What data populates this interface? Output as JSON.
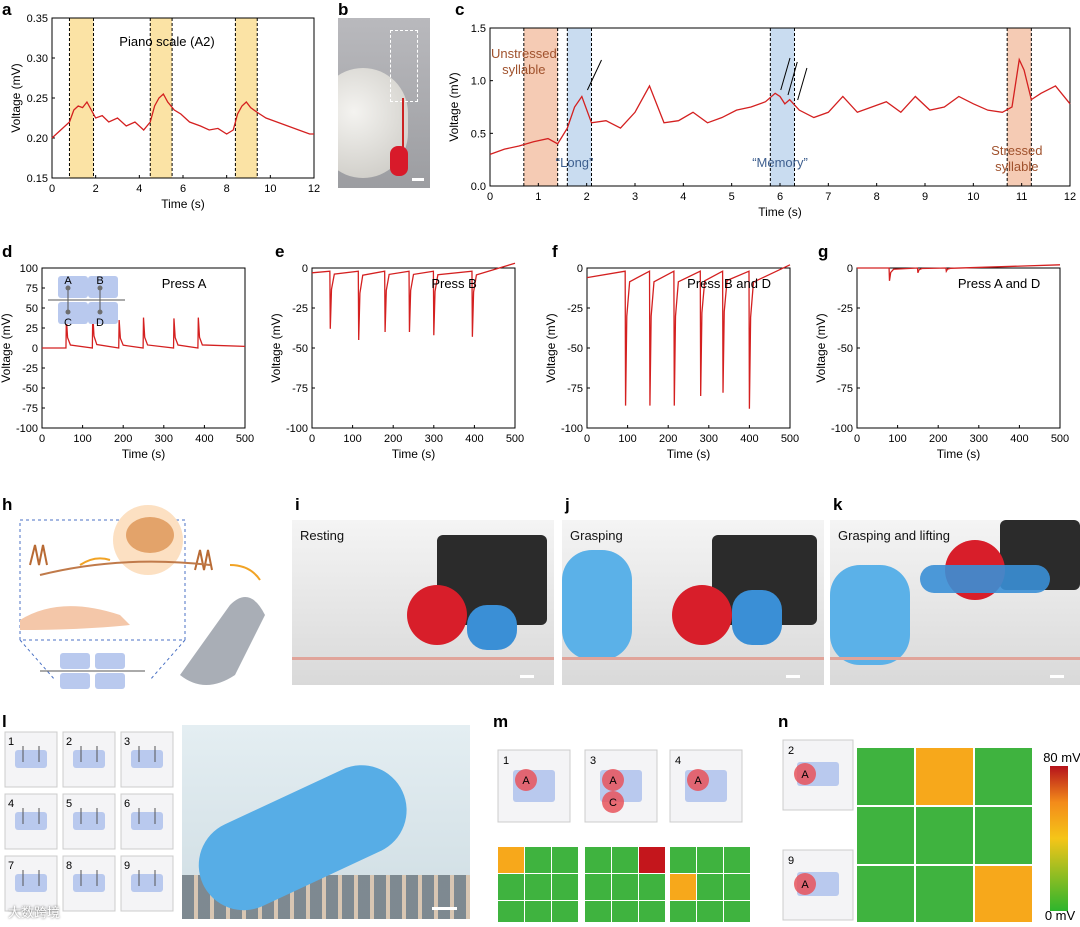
{
  "labels": {
    "a": "a",
    "b": "b",
    "c": "c",
    "d": "d",
    "e": "e",
    "f": "f",
    "g": "g",
    "h": "h",
    "i": "i",
    "j": "j",
    "k": "k",
    "l": "l",
    "m": "m",
    "n": "n"
  },
  "colors": {
    "trace": "#d42020",
    "yellow": "#fbe3a5",
    "orange": "#f5cbb4",
    "blue": "#c9dcf0",
    "cellGreen": "#3fb33f",
    "cellOrange": "#f7a81b",
    "cellRed": "#c4161c",
    "pad": "#b9c9ee",
    "node": "#6e6e6e"
  },
  "photos": {
    "i": {
      "caption": "Resting"
    },
    "j": {
      "caption": "Grasping"
    },
    "k": {
      "caption": "Grasping and lifting"
    }
  },
  "chart_data": [
    {
      "id": "a",
      "type": "line",
      "title": "Piano scale (A2)",
      "xlabel": "Time (s)",
      "ylabel": "Voltage (mV)",
      "xlim": [
        0,
        12
      ],
      "ylim": [
        0.15,
        0.35
      ],
      "xticks": [
        "0",
        "2",
        "4",
        "6",
        "8",
        "10",
        "12"
      ],
      "yticks": [
        "0.15",
        "0.20",
        "0.25",
        "0.30",
        "0.35"
      ],
      "highlights": [
        [
          0.8,
          1.9
        ],
        [
          4.5,
          5.5
        ],
        [
          8.4,
          9.4
        ]
      ],
      "x": [
        0,
        0.4,
        0.8,
        1.0,
        1.2,
        1.4,
        1.6,
        1.8,
        2.0,
        2.3,
        2.6,
        3.0,
        3.4,
        3.8,
        4.2,
        4.5,
        4.7,
        4.9,
        5.1,
        5.3,
        5.6,
        5.9,
        6.3,
        6.8,
        7.2,
        7.6,
        8.0,
        8.3,
        8.5,
        8.7,
        8.9,
        9.1,
        9.4,
        9.8,
        10.3,
        10.8,
        11.3,
        11.8,
        12
      ],
      "y": [
        0.2,
        0.21,
        0.22,
        0.235,
        0.24,
        0.238,
        0.245,
        0.235,
        0.225,
        0.228,
        0.22,
        0.225,
        0.215,
        0.22,
        0.21,
        0.22,
        0.24,
        0.25,
        0.255,
        0.245,
        0.235,
        0.23,
        0.22,
        0.215,
        0.21,
        0.212,
        0.205,
        0.21,
        0.23,
        0.24,
        0.245,
        0.238,
        0.232,
        0.225,
        0.22,
        0.215,
        0.21,
        0.205,
        0.205
      ]
    },
    {
      "id": "c",
      "type": "line",
      "xlabel": "Time (s)",
      "ylabel": "Voltage (mV)",
      "xlim": [
        0,
        12
      ],
      "ylim": [
        0,
        1.5
      ],
      "xticks": [
        "0",
        "1",
        "2",
        "3",
        "4",
        "5",
        "6",
        "7",
        "8",
        "9",
        "10",
        "11",
        "12"
      ],
      "yticks": [
        "0.0",
        "0.5",
        "1.0",
        "1.5"
      ],
      "highlights": [
        {
          "range": [
            0.7,
            1.4
          ],
          "tone": "orange"
        },
        {
          "range": [
            1.6,
            2.1
          ],
          "tone": "blue"
        },
        {
          "range": [
            5.8,
            6.3
          ],
          "tone": "blue"
        },
        {
          "range": [
            10.7,
            11.2
          ],
          "tone": "orange"
        }
      ],
      "annotations": [
        "Unstressed\nsyllable",
        "“Long”",
        "“Memory”",
        "Stressed\nsyllable"
      ],
      "x": [
        0,
        0.3,
        0.6,
        0.9,
        1.2,
        1.4,
        1.6,
        1.75,
        1.9,
        2.1,
        2.4,
        2.7,
        3.0,
        3.3,
        3.6,
        3.9,
        4.2,
        4.5,
        4.8,
        5.1,
        5.4,
        5.7,
        5.9,
        6.0,
        6.1,
        6.2,
        6.4,
        6.7,
        7.0,
        7.3,
        7.6,
        7.9,
        8.2,
        8.5,
        8.8,
        9.1,
        9.4,
        9.7,
        10.0,
        10.3,
        10.6,
        10.8,
        10.95,
        11.05,
        11.2,
        11.4,
        11.7,
        12
      ],
      "y": [
        0.3,
        0.35,
        0.38,
        0.42,
        0.45,
        0.4,
        0.55,
        0.75,
        0.85,
        0.6,
        0.62,
        0.55,
        0.7,
        0.95,
        0.6,
        0.62,
        0.7,
        0.6,
        0.65,
        0.72,
        0.75,
        0.8,
        0.88,
        0.85,
        0.78,
        0.82,
        0.72,
        0.65,
        0.7,
        0.85,
        0.7,
        0.75,
        0.8,
        0.7,
        0.85,
        0.72,
        0.75,
        0.85,
        0.78,
        0.72,
        0.7,
        0.75,
        1.2,
        1.1,
        0.82,
        0.88,
        0.95,
        0.78
      ]
    },
    {
      "id": "d",
      "type": "line",
      "title": "Press A",
      "xlabel": "Time (s)",
      "ylabel": "Voltage (mV)",
      "xlim": [
        0,
        500
      ],
      "ylim": [
        -100,
        100
      ],
      "xticks": [
        "0",
        "100",
        "200",
        "300",
        "400",
        "500"
      ],
      "yticks": [
        "-100",
        "-75",
        "-50",
        "-25",
        "0",
        "25",
        "50",
        "75",
        "100"
      ],
      "spikes": [
        {
          "t": 60,
          "v": 37
        },
        {
          "t": 125,
          "v": 43
        },
        {
          "t": 190,
          "v": 35
        },
        {
          "t": 250,
          "v": 38
        },
        {
          "t": 325,
          "v": 37
        },
        {
          "t": 385,
          "v": 38
        }
      ],
      "inset_nodes": [
        "A",
        "B",
        "C",
        "D"
      ]
    },
    {
      "id": "e",
      "type": "line",
      "title": "Press B",
      "xlabel": "Time (s)",
      "ylabel": "Voltage (mV)",
      "xlim": [
        0,
        500
      ],
      "ylim": [
        -100,
        0
      ],
      "xticks": [
        "0",
        "100",
        "200",
        "300",
        "400",
        "500"
      ],
      "yticks": [
        "-100",
        "-75",
        "-50",
        "-25",
        "0"
      ],
      "spikes": [
        {
          "t": 45,
          "v": -38
        },
        {
          "t": 115,
          "v": -45
        },
        {
          "t": 180,
          "v": -40
        },
        {
          "t": 240,
          "v": -40
        },
        {
          "t": 300,
          "v": -42
        },
        {
          "t": 395,
          "v": -43
        }
      ]
    },
    {
      "id": "f",
      "type": "line",
      "title": "Press B and D",
      "xlabel": "Time (s)",
      "ylabel": "Voltage (mV)",
      "xlim": [
        0,
        500
      ],
      "ylim": [
        -100,
        0
      ],
      "xticks": [
        "0",
        "100",
        "200",
        "300",
        "400",
        "500"
      ],
      "yticks": [
        "-100",
        "-75",
        "-50",
        "-25",
        "0"
      ],
      "spikes": [
        {
          "t": 95,
          "v": -86
        },
        {
          "t": 155,
          "v": -86
        },
        {
          "t": 215,
          "v": -86
        },
        {
          "t": 280,
          "v": -80
        },
        {
          "t": 335,
          "v": -78
        },
        {
          "t": 400,
          "v": -88
        }
      ]
    },
    {
      "id": "g",
      "type": "line",
      "title": "Press A and D",
      "xlabel": "Time (s)",
      "ylabel": "Voltage (mV)",
      "xlim": [
        0,
        500
      ],
      "ylim": [
        -100,
        0
      ],
      "xticks": [
        "0",
        "100",
        "200",
        "300",
        "400",
        "500"
      ],
      "yticks": [
        "-100",
        "-75",
        "-50",
        "-25",
        "0"
      ],
      "spikes": [
        {
          "t": 80,
          "v": -8
        },
        {
          "t": 150,
          "v": -3
        },
        {
          "t": 220,
          "v": -2
        }
      ]
    },
    {
      "id": "m",
      "type": "heatmap",
      "grids": [
        [
          [
            "o",
            "g",
            "g"
          ],
          [
            "g",
            "g",
            "g"
          ],
          [
            "g",
            "g",
            "g"
          ]
        ],
        [
          [
            "g",
            "g",
            "r"
          ],
          [
            "g",
            "g",
            "g"
          ],
          [
            "g",
            "g",
            "g"
          ]
        ],
        [
          [
            "g",
            "g",
            "g"
          ],
          [
            "o",
            "g",
            "g"
          ],
          [
            "g",
            "g",
            "g"
          ]
        ]
      ]
    },
    {
      "id": "n",
      "type": "heatmap",
      "grid": [
        [
          "g",
          "o",
          "g"
        ],
        [
          "g",
          "g",
          "g"
        ],
        [
          "g",
          "g",
          "o"
        ]
      ],
      "colorbar": {
        "max": "80 mV",
        "min": "0 mV"
      }
    }
  ],
  "schematics": {
    "l": [
      "1",
      "2",
      "3",
      "4",
      "5",
      "6",
      "7",
      "8",
      "9"
    ],
    "m": [
      {
        "num": "1",
        "letters": [
          "A"
        ]
      },
      {
        "num": "3",
        "letters": [
          "A",
          "C"
        ]
      },
      {
        "num": "4",
        "letters": [
          "A"
        ]
      }
    ],
    "n": [
      {
        "num": "2",
        "letters": [
          "A"
        ]
      },
      {
        "num": "9",
        "letters": [
          "A"
        ]
      }
    ]
  },
  "watermark": "大数跨境"
}
